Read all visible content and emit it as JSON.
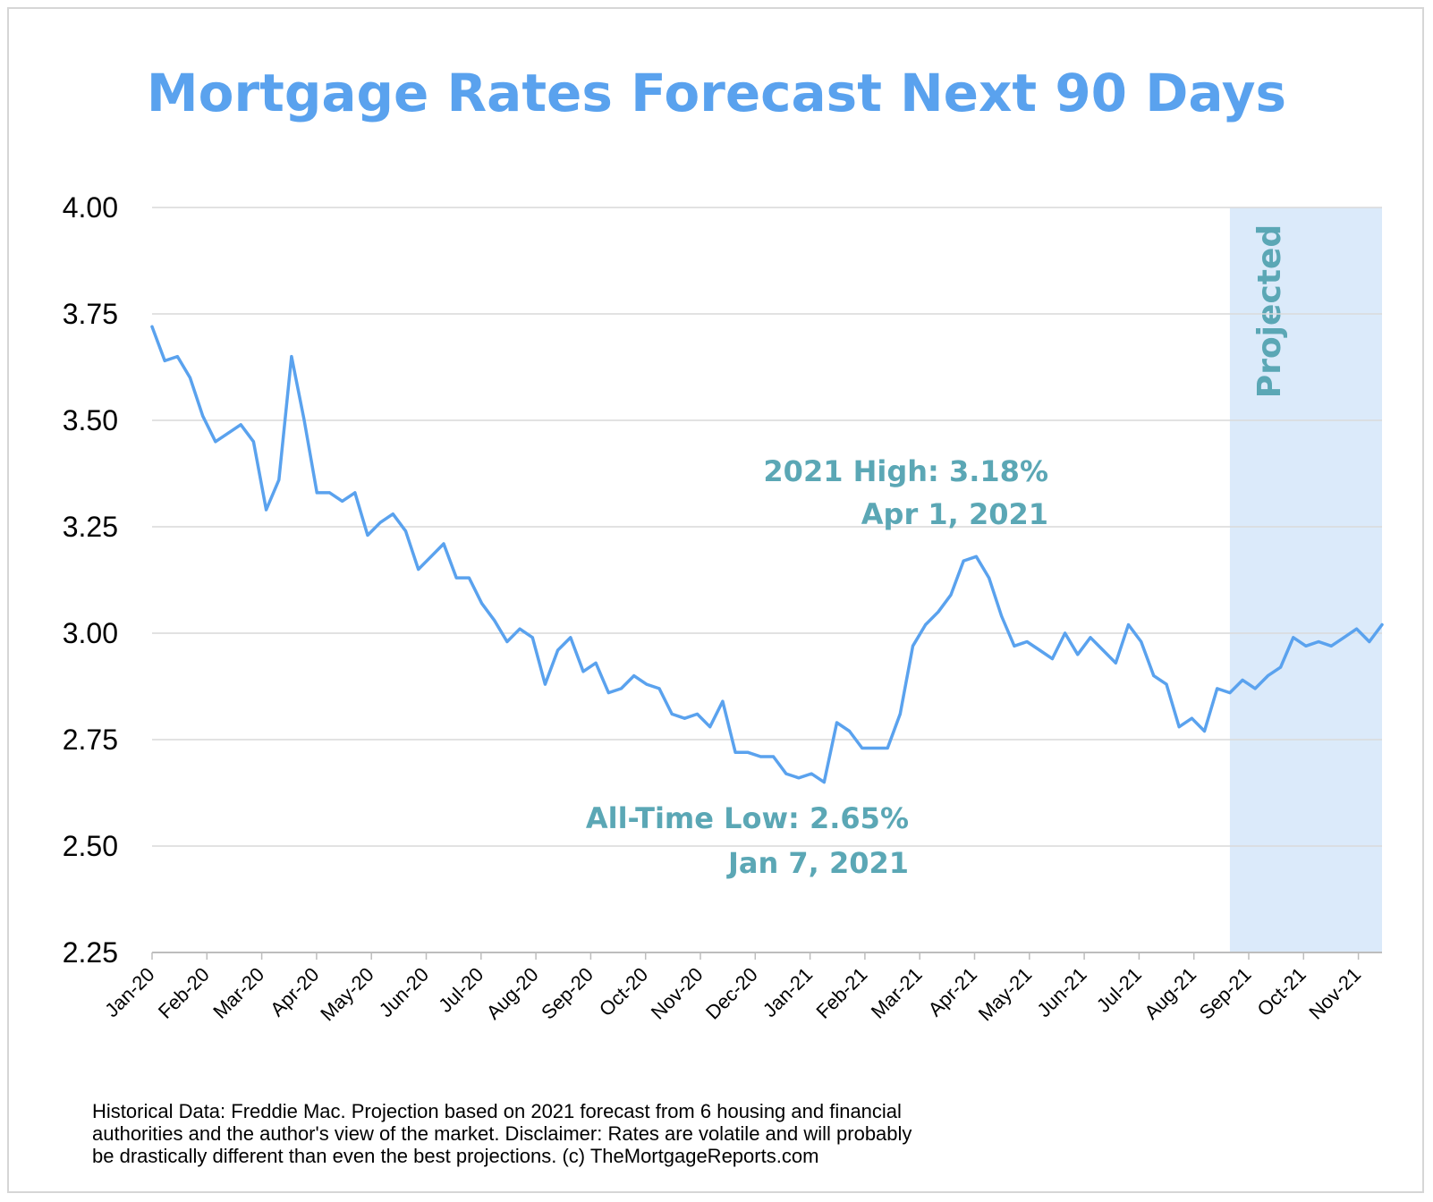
{
  "chart_data": {
    "type": "line",
    "title": "Mortgage Rates Forecast Next 90 Days",
    "xlabel": "",
    "ylabel": "",
    "ylim": [
      2.25,
      4.0
    ],
    "yticks": [
      "4.00",
      "3.75",
      "3.50",
      "3.25",
      "3.00",
      "2.75",
      "2.50",
      "2.25"
    ],
    "x_tick_labels": [
      "Jan-20",
      "Feb-20",
      "Mar-20",
      "Apr-20",
      "May-20",
      "Jun-20",
      "Jul-20",
      "Aug-20",
      "Sep-20",
      "Oct-20",
      "Nov-20",
      "Dec-20",
      "Jan-21",
      "Feb-21",
      "Mar-21",
      "Apr-21",
      "May-21",
      "Jun-21",
      "Jul-21",
      "Aug-21",
      "Sep-21",
      "Oct-21",
      "Nov-21"
    ],
    "grid": "horizontal",
    "line_color": "#5aa2ee",
    "projected_region": {
      "label": "Projected",
      "start_index": 85,
      "color": "#dbeafa"
    },
    "series": [
      {
        "values": [
          3.72,
          3.64,
          3.65,
          3.6,
          3.51,
          3.45,
          3.47,
          3.49,
          3.45,
          3.29,
          3.36,
          3.65,
          3.5,
          3.33,
          3.33,
          3.31,
          3.33,
          3.23,
          3.26,
          3.28,
          3.24,
          3.15,
          3.18,
          3.21,
          3.13,
          3.13,
          3.07,
          3.03,
          2.98,
          3.01,
          2.99,
          2.88,
          2.96,
          2.99,
          2.91,
          2.93,
          2.86,
          2.87,
          2.9,
          2.88,
          2.87,
          2.81,
          2.8,
          2.81,
          2.78,
          2.84,
          2.72,
          2.72,
          2.71,
          2.71,
          2.67,
          2.66,
          2.67,
          2.65,
          2.79,
          2.77,
          2.73,
          2.73,
          2.73,
          2.81,
          2.97,
          3.02,
          3.05,
          3.09,
          3.17,
          3.18,
          3.13,
          3.04,
          2.97,
          2.98,
          2.96,
          2.94,
          3.0,
          2.95,
          2.99,
          2.96,
          2.93,
          3.02,
          2.98,
          2.9,
          2.88,
          2.78,
          2.8,
          2.77,
          2.87,
          2.86,
          2.89,
          2.87,
          2.9,
          2.92,
          2.99,
          2.97,
          2.98,
          2.97,
          2.99,
          3.01,
          2.98,
          3.02
        ]
      }
    ],
    "annotations": [
      {
        "lines": [
          "2021 High: 3.18%",
          "Apr 1, 2021"
        ]
      },
      {
        "lines": [
          "All-Time Low: 2.65%",
          "Jan 7, 2021"
        ]
      }
    ]
  },
  "footnote": [
    "Historical Data: Freddie Mac. Projection based on 2021 forecast from 6 housing and financial",
    "authorities and the author's view of the market. Disclaimer: Rates are volatile and will probably",
    "be drastically different than even the best projections. (c) TheMortgageReports.com"
  ]
}
